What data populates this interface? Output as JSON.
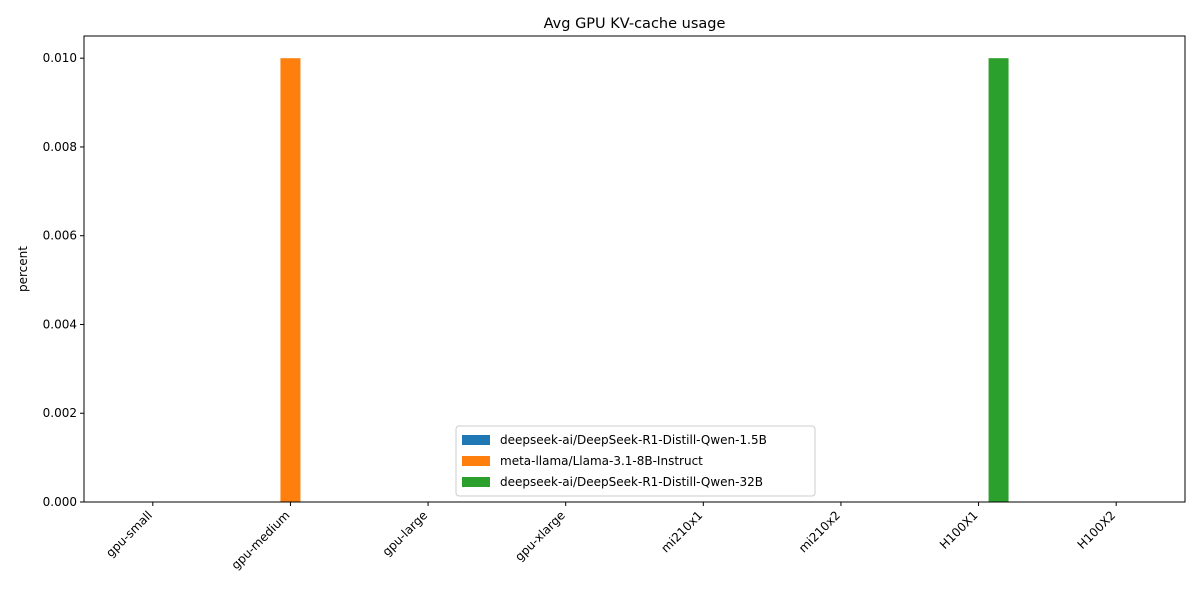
{
  "chart_data": {
    "type": "bar",
    "title": "Avg GPU KV-cache usage",
    "xlabel": "",
    "ylabel": "percent",
    "categories": [
      "gpu-small",
      "gpu-medium",
      "gpu-large",
      "gpu-xlarge",
      "mi210x1",
      "mi210x2",
      "H100X1",
      "H100X2"
    ],
    "series": [
      {
        "name": "deepseek-ai/DeepSeek-R1-Distill-Qwen-1.5B",
        "color": "#1f77b4",
        "values": [
          0,
          0,
          0,
          0,
          0,
          0,
          0,
          0
        ]
      },
      {
        "name": "meta-llama/Llama-3.1-8B-Instruct",
        "color": "#ff7f0e",
        "values": [
          0,
          0.01,
          0,
          0,
          0,
          0,
          0,
          0
        ]
      },
      {
        "name": "deepseek-ai/DeepSeek-R1-Distill-Qwen-32B",
        "color": "#2ca02c",
        "values": [
          0,
          0,
          0,
          0,
          0,
          0,
          0.01,
          0
        ]
      }
    ],
    "ylim": [
      0,
      0.0105
    ],
    "yticks": [
      "0.000",
      "0.002",
      "0.004",
      "0.006",
      "0.008",
      "0.010"
    ],
    "grid": false,
    "legend_position": "lower center"
  }
}
